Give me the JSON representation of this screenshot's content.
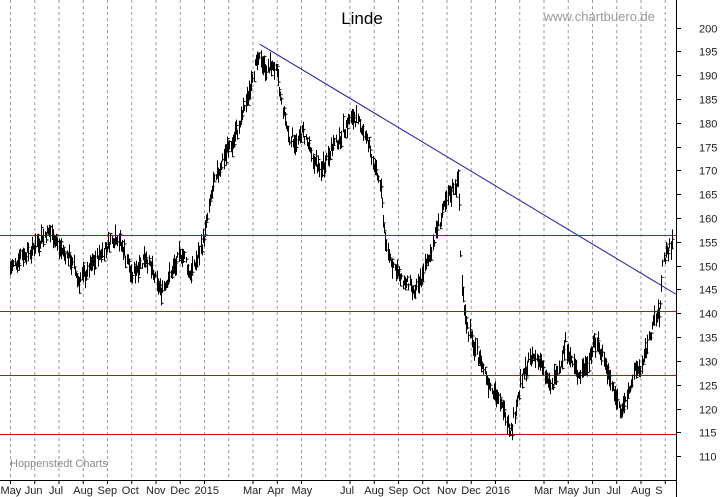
{
  "chart_data": {
    "type": "line",
    "style": "high-low bars (OHLC)",
    "title": "Linde",
    "watermark": "www.chartbuero.de",
    "credit": "Hoppenstedt Charts",
    "xlabel": "",
    "ylabel": "",
    "ylim": [
      105,
      202
    ],
    "y_axis_side": "right",
    "grid": "vertical dashed monthly",
    "y_ticks": [
      110,
      115,
      120,
      125,
      130,
      135,
      140,
      145,
      150,
      155,
      160,
      165,
      170,
      175,
      180,
      185,
      190,
      195,
      200
    ],
    "x_labels": [
      "May",
      "Jun",
      "Jul",
      "Aug",
      "Sep",
      "Oct",
      "Nov",
      "Dec",
      "2015",
      "Mar",
      "Apr",
      "May",
      "Jul",
      "Aug",
      "Sep",
      "Oct",
      "Nov",
      "Dec",
      "2016",
      "Mar",
      "May",
      "Jun",
      "Jul",
      "Aug",
      "S"
    ],
    "x_label_idx": [
      0,
      1,
      2,
      3,
      4,
      5,
      6,
      7,
      8,
      10,
      11,
      12,
      14,
      15,
      16,
      17,
      18,
      19,
      20,
      22,
      23,
      24,
      25,
      26,
      27
    ],
    "x_months": 28,
    "series": [
      {
        "name": "",
        "color": "#000000",
        "points": [
          [
            0.0,
            149
          ],
          [
            0.4,
            152
          ],
          [
            0.8,
            153
          ],
          [
            1.0,
            154
          ],
          [
            1.3,
            156
          ],
          [
            1.6,
            157
          ],
          [
            1.9,
            155
          ],
          [
            2.2,
            153
          ],
          [
            2.5,
            151
          ],
          [
            2.8,
            147
          ],
          [
            3.1,
            148
          ],
          [
            3.5,
            151
          ],
          [
            3.8,
            153
          ],
          [
            4.1,
            155
          ],
          [
            4.4,
            156
          ],
          [
            4.7,
            153
          ],
          [
            5.0,
            148
          ],
          [
            5.3,
            150
          ],
          [
            5.6,
            152
          ],
          [
            5.9,
            148
          ],
          [
            6.2,
            145
          ],
          [
            6.5,
            147
          ],
          [
            6.8,
            150
          ],
          [
            7.1,
            153
          ],
          [
            7.4,
            148
          ],
          [
            7.7,
            151
          ],
          [
            8.0,
            156
          ],
          [
            8.3,
            165
          ],
          [
            8.6,
            170
          ],
          [
            8.9,
            174
          ],
          [
            9.2,
            176
          ],
          [
            9.5,
            180
          ],
          [
            9.8,
            186
          ],
          [
            10.1,
            192
          ],
          [
            10.35,
            193.5
          ],
          [
            10.6,
            191
          ],
          [
            10.9,
            192
          ],
          [
            11.2,
            184
          ],
          [
            11.5,
            177
          ],
          [
            11.8,
            176
          ],
          [
            12.1,
            178
          ],
          [
            12.5,
            172
          ],
          [
            12.8,
            170
          ],
          [
            13.2,
            174
          ],
          [
            13.6,
            177
          ],
          [
            13.9,
            180
          ],
          [
            14.2,
            181
          ],
          [
            14.5,
            179
          ],
          [
            14.8,
            175
          ],
          [
            15.0,
            171
          ],
          [
            15.25,
            167
          ],
          [
            15.5,
            154
          ],
          [
            15.8,
            150
          ],
          [
            16.1,
            147
          ],
          [
            16.4,
            146
          ],
          [
            16.7,
            144
          ],
          [
            17.0,
            148
          ],
          [
            17.3,
            152
          ],
          [
            17.6,
            158
          ],
          [
            17.9,
            162
          ],
          [
            18.2,
            166
          ],
          [
            18.5,
            168
          ],
          [
            18.6,
            147
          ],
          [
            18.8,
            138
          ],
          [
            19.1,
            133
          ],
          [
            19.4,
            130
          ],
          [
            19.7,
            126
          ],
          [
            20.0,
            123
          ],
          [
            20.3,
            120
          ],
          [
            20.5,
            118
          ],
          [
            20.65,
            115
          ],
          [
            20.8,
            119
          ],
          [
            21.1,
            126
          ],
          [
            21.4,
            130
          ],
          [
            21.7,
            131
          ],
          [
            22.0,
            128
          ],
          [
            22.3,
            124
          ],
          [
            22.6,
            128
          ],
          [
            22.9,
            134
          ],
          [
            23.2,
            129
          ],
          [
            23.5,
            127
          ],
          [
            23.8,
            130
          ],
          [
            24.1,
            134
          ],
          [
            24.4,
            132
          ],
          [
            24.7,
            126
          ],
          [
            25.0,
            122
          ],
          [
            25.2,
            119
          ],
          [
            25.5,
            124
          ],
          [
            25.8,
            128
          ],
          [
            26.1,
            129
          ],
          [
            26.3,
            134
          ],
          [
            26.6,
            139
          ],
          [
            26.8,
            140
          ],
          [
            26.9,
            151
          ],
          [
            27.1,
            153
          ],
          [
            27.3,
            155
          ]
        ]
      }
    ],
    "horizontal_lines": [
      {
        "value": 156.5,
        "color": "#e00000"
      },
      {
        "value": 140.5,
        "color": "#e00000"
      },
      {
        "value": 127.0,
        "color": "#e00000"
      },
      {
        "value": 114.7,
        "color": "#e00000"
      }
    ],
    "trend_line": {
      "color": "#1a1aa6",
      "from": [
        10.3,
        196.5
      ],
      "to": [
        28.0,
        144.0
      ]
    }
  }
}
